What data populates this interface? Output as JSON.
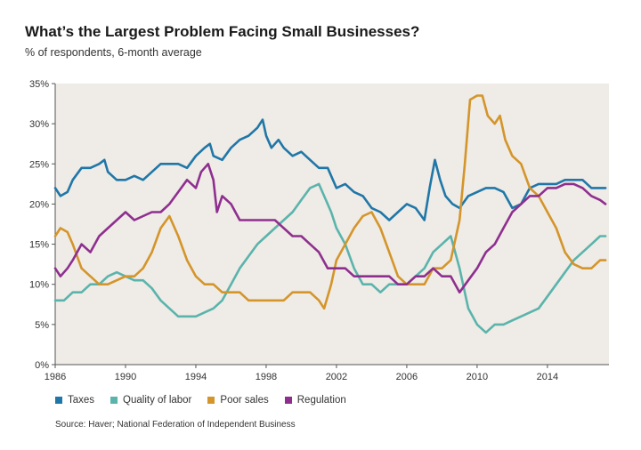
{
  "chart_data": {
    "type": "line",
    "title": "What’s the Largest Problem Facing Small Businesses?",
    "subtitle": "% of respondents, 6-month average",
    "xlabel": "",
    "ylabel": "",
    "xlim": [
      1986,
      2017.5
    ],
    "ylim": [
      0,
      35
    ],
    "x_ticks": [
      1986,
      1990,
      1994,
      1998,
      2002,
      2006,
      2010,
      2014
    ],
    "x_tick_labels": [
      "1986",
      "1990",
      "1994",
      "1998",
      "2002",
      "2006",
      "2010",
      "2014"
    ],
    "y_ticks": [
      0,
      5,
      10,
      15,
      20,
      25,
      30,
      35
    ],
    "y_tick_labels": [
      "0%",
      "5%",
      "10%",
      "15%",
      "20%",
      "25%",
      "30%",
      "35%"
    ],
    "grid": false,
    "legend_position": "bottom-left",
    "background": "#efebe6",
    "series": [
      {
        "name": "Taxes",
        "color": "#1f77a8",
        "points": [
          [
            1986.0,
            22
          ],
          [
            1986.3,
            21
          ],
          [
            1986.7,
            21.5
          ],
          [
            1987.0,
            23
          ],
          [
            1987.5,
            24.5
          ],
          [
            1988.0,
            24.5
          ],
          [
            1988.5,
            25
          ],
          [
            1988.8,
            25.5
          ],
          [
            1989.0,
            24
          ],
          [
            1989.5,
            23
          ],
          [
            1990.0,
            23
          ],
          [
            1990.5,
            23.5
          ],
          [
            1991.0,
            23
          ],
          [
            1991.5,
            24
          ],
          [
            1992.0,
            25
          ],
          [
            1992.5,
            25
          ],
          [
            1993.0,
            25
          ],
          [
            1993.5,
            24.5
          ],
          [
            1994.0,
            26
          ],
          [
            1994.5,
            27
          ],
          [
            1994.8,
            27.5
          ],
          [
            1995.0,
            26
          ],
          [
            1995.5,
            25.5
          ],
          [
            1996.0,
            27
          ],
          [
            1996.5,
            28
          ],
          [
            1997.0,
            28.5
          ],
          [
            1997.5,
            29.5
          ],
          [
            1997.8,
            30.5
          ],
          [
            1998.0,
            28.5
          ],
          [
            1998.3,
            27
          ],
          [
            1998.7,
            28
          ],
          [
            1999.0,
            27
          ],
          [
            1999.5,
            26
          ],
          [
            2000.0,
            26.5
          ],
          [
            2000.5,
            25.5
          ],
          [
            2001.0,
            24.5
          ],
          [
            2001.5,
            24.5
          ],
          [
            2002.0,
            22
          ],
          [
            2002.5,
            22.5
          ],
          [
            2003.0,
            21.5
          ],
          [
            2003.5,
            21
          ],
          [
            2004.0,
            19.5
          ],
          [
            2004.5,
            19
          ],
          [
            2005.0,
            18
          ],
          [
            2005.5,
            19
          ],
          [
            2006.0,
            20
          ],
          [
            2006.5,
            19.5
          ],
          [
            2007.0,
            18
          ],
          [
            2007.3,
            22
          ],
          [
            2007.6,
            25.5
          ],
          [
            2007.9,
            23
          ],
          [
            2008.2,
            21
          ],
          [
            2008.6,
            20
          ],
          [
            2009.0,
            19.5
          ],
          [
            2009.5,
            21
          ],
          [
            2010.0,
            21.5
          ],
          [
            2010.5,
            22
          ],
          [
            2011.0,
            22
          ],
          [
            2011.5,
            21.5
          ],
          [
            2012.0,
            19.5
          ],
          [
            2012.5,
            20
          ],
          [
            2013.0,
            22
          ],
          [
            2013.5,
            22.5
          ],
          [
            2014.0,
            22.5
          ],
          [
            2014.5,
            22.5
          ],
          [
            2015.0,
            23
          ],
          [
            2015.5,
            23
          ],
          [
            2016.0,
            23
          ],
          [
            2016.5,
            22
          ],
          [
            2017.0,
            22
          ],
          [
            2017.3,
            22
          ]
        ]
      },
      {
        "name": "Quality of labor",
        "color": "#5ab4ac",
        "points": [
          [
            1986.0,
            8
          ],
          [
            1986.5,
            8
          ],
          [
            1987.0,
            9
          ],
          [
            1987.5,
            9
          ],
          [
            1988.0,
            10
          ],
          [
            1988.5,
            10
          ],
          [
            1989.0,
            11
          ],
          [
            1989.5,
            11.5
          ],
          [
            1990.0,
            11
          ],
          [
            1990.5,
            10.5
          ],
          [
            1991.0,
            10.5
          ],
          [
            1991.5,
            9.5
          ],
          [
            1992.0,
            8
          ],
          [
            1992.5,
            7
          ],
          [
            1993.0,
            6
          ],
          [
            1993.5,
            6
          ],
          [
            1994.0,
            6
          ],
          [
            1994.5,
            6.5
          ],
          [
            1995.0,
            7
          ],
          [
            1995.5,
            8
          ],
          [
            1996.0,
            10
          ],
          [
            1996.5,
            12
          ],
          [
            1997.0,
            13.5
          ],
          [
            1997.5,
            15
          ],
          [
            1998.0,
            16
          ],
          [
            1998.5,
            17
          ],
          [
            1999.0,
            18
          ],
          [
            1999.5,
            19
          ],
          [
            2000.0,
            20.5
          ],
          [
            2000.5,
            22
          ],
          [
            2001.0,
            22.5
          ],
          [
            2001.3,
            21
          ],
          [
            2001.7,
            19
          ],
          [
            2002.0,
            17
          ],
          [
            2002.5,
            15
          ],
          [
            2003.0,
            12
          ],
          [
            2003.5,
            10
          ],
          [
            2004.0,
            10
          ],
          [
            2004.5,
            9
          ],
          [
            2005.0,
            10
          ],
          [
            2005.5,
            10
          ],
          [
            2006.0,
            10
          ],
          [
            2006.5,
            11
          ],
          [
            2007.0,
            12
          ],
          [
            2007.5,
            14
          ],
          [
            2008.0,
            15
          ],
          [
            2008.5,
            16
          ],
          [
            2009.0,
            12
          ],
          [
            2009.5,
            7
          ],
          [
            2010.0,
            5
          ],
          [
            2010.5,
            4
          ],
          [
            2011.0,
            5
          ],
          [
            2011.5,
            5
          ],
          [
            2012.0,
            5.5
          ],
          [
            2012.5,
            6
          ],
          [
            2013.0,
            6.5
          ],
          [
            2013.5,
            7
          ],
          [
            2014.0,
            8.5
          ],
          [
            2014.5,
            10
          ],
          [
            2015.0,
            11.5
          ],
          [
            2015.5,
            13
          ],
          [
            2016.0,
            14
          ],
          [
            2016.5,
            15
          ],
          [
            2017.0,
            16
          ],
          [
            2017.3,
            16
          ]
        ]
      },
      {
        "name": "Poor sales",
        "color": "#d4952a",
        "points": [
          [
            1986.0,
            16
          ],
          [
            1986.3,
            17
          ],
          [
            1986.7,
            16.5
          ],
          [
            1987.0,
            15
          ],
          [
            1987.5,
            12
          ],
          [
            1988.0,
            11
          ],
          [
            1988.5,
            10
          ],
          [
            1989.0,
            10
          ],
          [
            1989.5,
            10.5
          ],
          [
            1990.0,
            11
          ],
          [
            1990.5,
            11
          ],
          [
            1991.0,
            12
          ],
          [
            1991.5,
            14
          ],
          [
            1992.0,
            17
          ],
          [
            1992.5,
            18.5
          ],
          [
            1993.0,
            16
          ],
          [
            1993.5,
            13
          ],
          [
            1994.0,
            11
          ],
          [
            1994.5,
            10
          ],
          [
            1995.0,
            10
          ],
          [
            1995.5,
            9
          ],
          [
            1996.0,
            9
          ],
          [
            1996.5,
            9
          ],
          [
            1997.0,
            8
          ],
          [
            1997.5,
            8
          ],
          [
            1998.0,
            8
          ],
          [
            1998.5,
            8
          ],
          [
            1999.0,
            8
          ],
          [
            1999.5,
            9
          ],
          [
            2000.0,
            9
          ],
          [
            2000.5,
            9
          ],
          [
            2001.0,
            8
          ],
          [
            2001.3,
            7
          ],
          [
            2001.7,
            10
          ],
          [
            2002.0,
            13
          ],
          [
            2002.5,
            15
          ],
          [
            2003.0,
            17
          ],
          [
            2003.5,
            18.5
          ],
          [
            2004.0,
            19
          ],
          [
            2004.5,
            17
          ],
          [
            2005.0,
            14
          ],
          [
            2005.5,
            11
          ],
          [
            2006.0,
            10
          ],
          [
            2006.5,
            10
          ],
          [
            2007.0,
            10
          ],
          [
            2007.5,
            12
          ],
          [
            2008.0,
            12
          ],
          [
            2008.5,
            13
          ],
          [
            2009.0,
            18
          ],
          [
            2009.3,
            25
          ],
          [
            2009.6,
            33
          ],
          [
            2010.0,
            33.5
          ],
          [
            2010.3,
            33.5
          ],
          [
            2010.6,
            31
          ],
          [
            2011.0,
            30
          ],
          [
            2011.3,
            31
          ],
          [
            2011.6,
            28
          ],
          [
            2012.0,
            26
          ],
          [
            2012.5,
            25
          ],
          [
            2013.0,
            22
          ],
          [
            2013.5,
            21
          ],
          [
            2014.0,
            19
          ],
          [
            2014.5,
            17
          ],
          [
            2015.0,
            14
          ],
          [
            2015.5,
            12.5
          ],
          [
            2016.0,
            12
          ],
          [
            2016.5,
            12
          ],
          [
            2017.0,
            13
          ],
          [
            2017.3,
            13
          ]
        ]
      },
      {
        "name": "Regulation",
        "color": "#8e2f8f",
        "points": [
          [
            1986.0,
            12
          ],
          [
            1986.3,
            11
          ],
          [
            1986.7,
            12
          ],
          [
            1987.0,
            13
          ],
          [
            1987.5,
            15
          ],
          [
            1988.0,
            14
          ],
          [
            1988.5,
            16
          ],
          [
            1989.0,
            17
          ],
          [
            1989.5,
            18
          ],
          [
            1990.0,
            19
          ],
          [
            1990.5,
            18
          ],
          [
            1991.0,
            18.5
          ],
          [
            1991.5,
            19
          ],
          [
            1992.0,
            19
          ],
          [
            1992.5,
            20
          ],
          [
            1993.0,
            21.5
          ],
          [
            1993.5,
            23
          ],
          [
            1994.0,
            22
          ],
          [
            1994.3,
            24
          ],
          [
            1994.7,
            25
          ],
          [
            1995.0,
            23
          ],
          [
            1995.2,
            19
          ],
          [
            1995.5,
            21
          ],
          [
            1996.0,
            20
          ],
          [
            1996.5,
            18
          ],
          [
            1997.0,
            18
          ],
          [
            1997.5,
            18
          ],
          [
            1998.0,
            18
          ],
          [
            1998.5,
            18
          ],
          [
            1999.0,
            17
          ],
          [
            1999.5,
            16
          ],
          [
            2000.0,
            16
          ],
          [
            2000.5,
            15
          ],
          [
            2001.0,
            14
          ],
          [
            2001.5,
            12
          ],
          [
            2002.0,
            12
          ],
          [
            2002.5,
            12
          ],
          [
            2003.0,
            11
          ],
          [
            2003.5,
            11
          ],
          [
            2004.0,
            11
          ],
          [
            2004.5,
            11
          ],
          [
            2005.0,
            11
          ],
          [
            2005.5,
            10
          ],
          [
            2006.0,
            10
          ],
          [
            2006.5,
            11
          ],
          [
            2007.0,
            11
          ],
          [
            2007.5,
            12
          ],
          [
            2008.0,
            11
          ],
          [
            2008.5,
            11
          ],
          [
            2009.0,
            9
          ],
          [
            2009.5,
            10.5
          ],
          [
            2010.0,
            12
          ],
          [
            2010.5,
            14
          ],
          [
            2011.0,
            15
          ],
          [
            2011.5,
            17
          ],
          [
            2012.0,
            19
          ],
          [
            2012.5,
            20
          ],
          [
            2013.0,
            21
          ],
          [
            2013.5,
            21
          ],
          [
            2014.0,
            22
          ],
          [
            2014.5,
            22
          ],
          [
            2015.0,
            22.5
          ],
          [
            2015.5,
            22.5
          ],
          [
            2016.0,
            22
          ],
          [
            2016.5,
            21
          ],
          [
            2017.0,
            20.5
          ],
          [
            2017.3,
            20
          ]
        ]
      }
    ]
  },
  "source": "Source: Haver; National Federation of Independent Business"
}
